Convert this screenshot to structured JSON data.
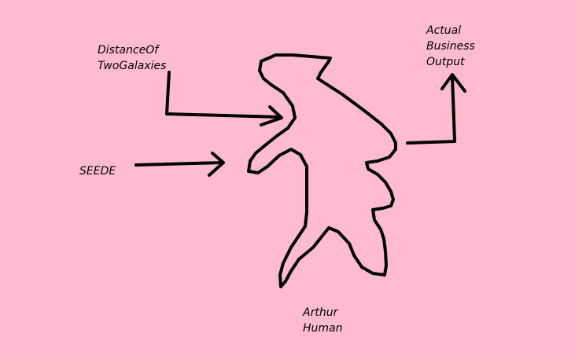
{
  "colors": {
    "background": "#FFBBD0",
    "figure_fill": "#A349A4",
    "ink": "#000000"
  },
  "labels": {
    "distance": [
      "DistanceOf",
      "TwoGalaxies"
    ],
    "seede": "SEEDE",
    "output": [
      "Actual",
      "Business",
      "Output"
    ],
    "figure": [
      "Arthur",
      "Human"
    ]
  },
  "figure_icon": "human-silhouette-icon"
}
